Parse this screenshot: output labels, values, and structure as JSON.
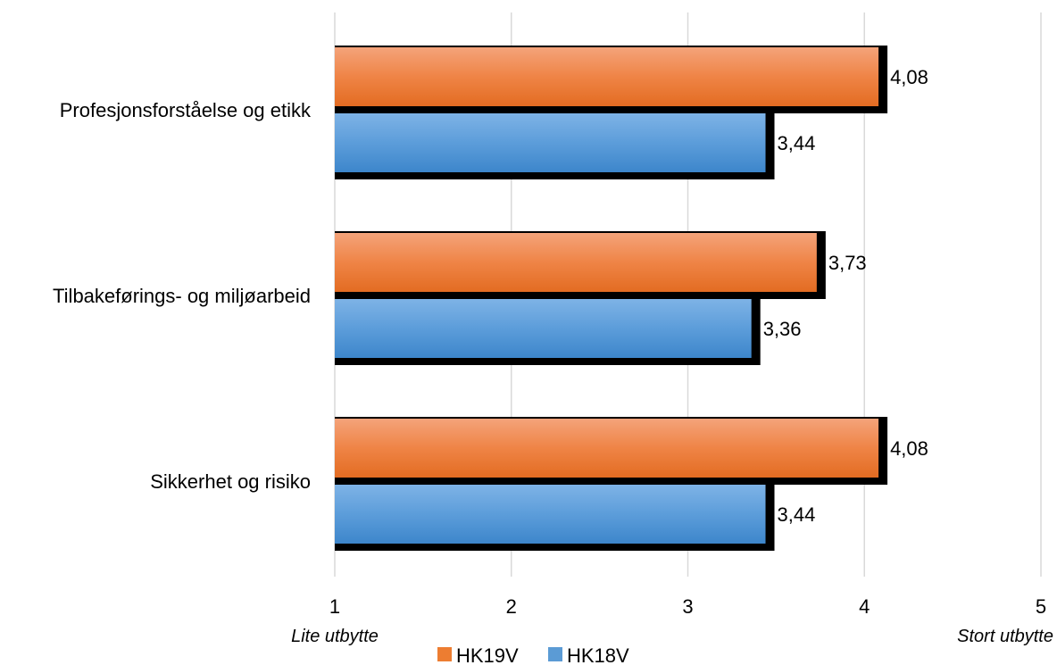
{
  "chart_data": {
    "type": "bar",
    "orientation": "horizontal",
    "categories": [
      "Profesjonsforståelse og etikk",
      "Tilbakeførings- og miljøarbeid",
      "Sikkerhet og risiko"
    ],
    "series": [
      {
        "name": "HK19V",
        "values": [
          4.08,
          3.73,
          4.08
        ],
        "labels": [
          "4,08",
          "3,73",
          "4,08"
        ],
        "color": "#ED7D31"
      },
      {
        "name": "HK18V",
        "values": [
          3.44,
          3.36,
          3.44
        ],
        "labels": [
          "3,44",
          "3,36",
          "3,44"
        ],
        "color": "#5B9BD5"
      }
    ],
    "xlim": [
      1,
      5
    ],
    "xticks": [
      "1",
      "2",
      "3",
      "4",
      "5"
    ],
    "x_left_note": "Lite utbytte",
    "x_right_note": "Stort utbytte",
    "grid": true,
    "legend": "bottom"
  }
}
